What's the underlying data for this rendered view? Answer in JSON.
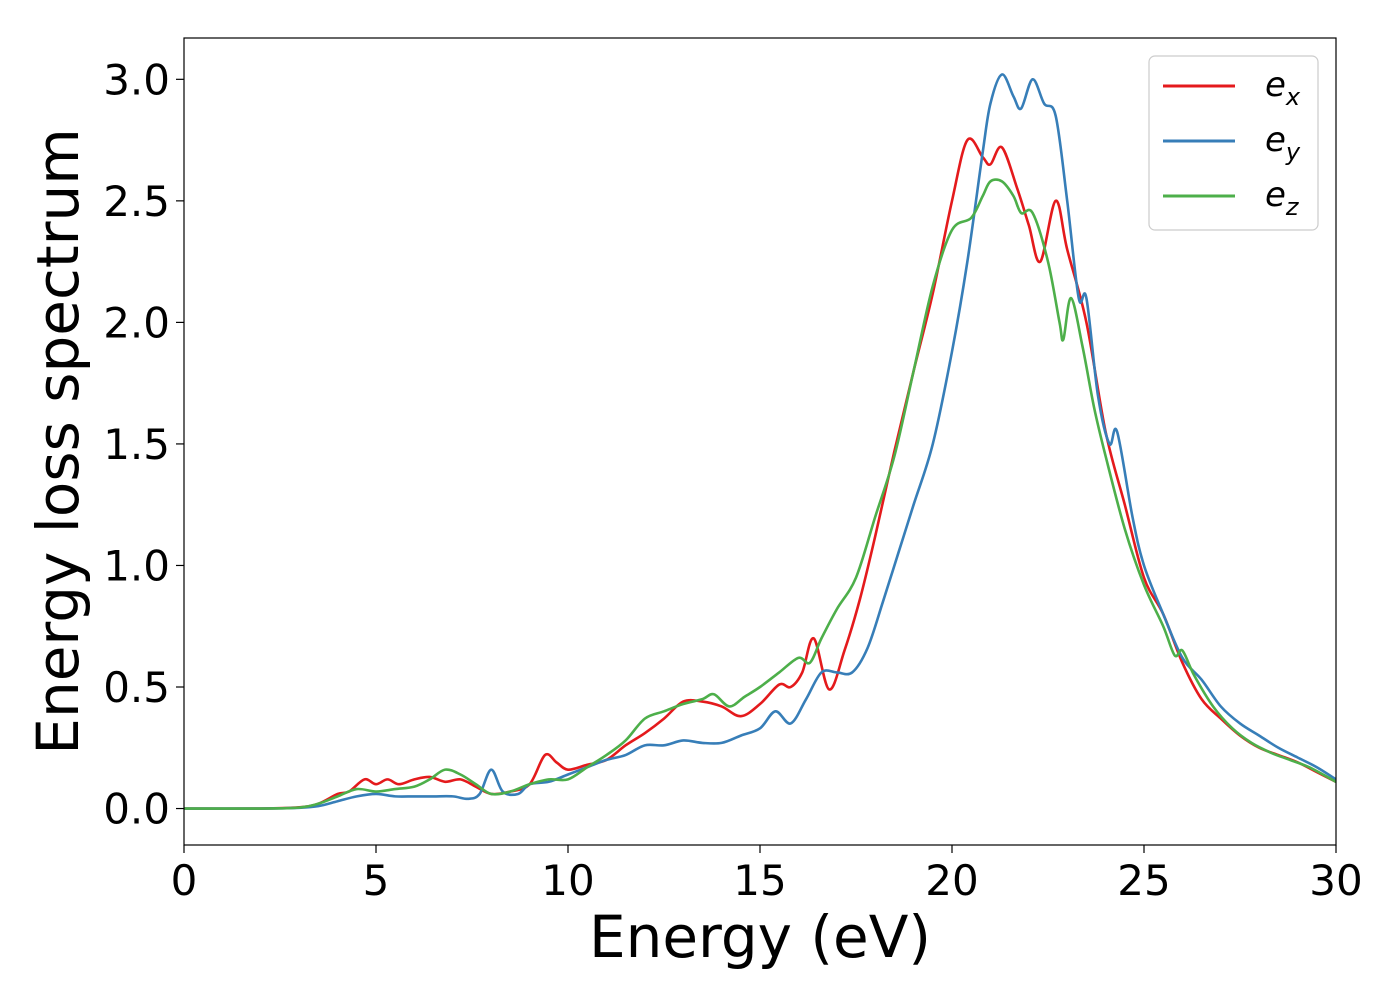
{
  "chart_data": {
    "type": "line",
    "title": "",
    "xlabel": "Energy (eV)",
    "ylabel": "Energy loss spectrum",
    "xlim": [
      0,
      30
    ],
    "ylim": [
      -0.15,
      3.17
    ],
    "x_ticks": [
      "0",
      "5",
      "10",
      "15",
      "20",
      "25",
      "30"
    ],
    "y_ticks": [
      "0.0",
      "0.5",
      "1.0",
      "1.5",
      "2.0",
      "2.5",
      "3.0"
    ],
    "grid": false,
    "legend_position": "top-right",
    "series": [
      {
        "name": "e_x",
        "legend_base": "e",
        "legend_sub": "x",
        "color": "#e41a1c",
        "points": [
          [
            0,
            0.0
          ],
          [
            2,
            0.0
          ],
          [
            3,
            0.005
          ],
          [
            3.5,
            0.02
          ],
          [
            4,
            0.06
          ],
          [
            4.3,
            0.07
          ],
          [
            4.7,
            0.12
          ],
          [
            5.0,
            0.1
          ],
          [
            5.3,
            0.12
          ],
          [
            5.6,
            0.1
          ],
          [
            6.0,
            0.12
          ],
          [
            6.4,
            0.13
          ],
          [
            6.8,
            0.11
          ],
          [
            7.2,
            0.12
          ],
          [
            7.6,
            0.09
          ],
          [
            8.0,
            0.06
          ],
          [
            8.5,
            0.07
          ],
          [
            9.0,
            0.1
          ],
          [
            9.4,
            0.22
          ],
          [
            9.7,
            0.19
          ],
          [
            10.0,
            0.16
          ],
          [
            10.5,
            0.18
          ],
          [
            11.0,
            0.2
          ],
          [
            11.5,
            0.26
          ],
          [
            12.0,
            0.31
          ],
          [
            12.5,
            0.37
          ],
          [
            13.0,
            0.44
          ],
          [
            13.5,
            0.44
          ],
          [
            14.0,
            0.42
          ],
          [
            14.5,
            0.38
          ],
          [
            15.0,
            0.43
          ],
          [
            15.5,
            0.51
          ],
          [
            15.8,
            0.5
          ],
          [
            16.1,
            0.56
          ],
          [
            16.4,
            0.7
          ],
          [
            16.8,
            0.49
          ],
          [
            17.2,
            0.65
          ],
          [
            17.6,
            0.86
          ],
          [
            18.0,
            1.12
          ],
          [
            18.5,
            1.47
          ],
          [
            19.0,
            1.8
          ],
          [
            19.5,
            2.12
          ],
          [
            20.0,
            2.5
          ],
          [
            20.4,
            2.75
          ],
          [
            20.8,
            2.68
          ],
          [
            21.0,
            2.65
          ],
          [
            21.3,
            2.72
          ],
          [
            21.7,
            2.55
          ],
          [
            22.0,
            2.4
          ],
          [
            22.3,
            2.25
          ],
          [
            22.7,
            2.5
          ],
          [
            23.0,
            2.3
          ],
          [
            23.5,
            2.0
          ],
          [
            24.0,
            1.55
          ],
          [
            24.5,
            1.25
          ],
          [
            25.0,
            0.95
          ],
          [
            25.5,
            0.8
          ],
          [
            26.0,
            0.6
          ],
          [
            26.5,
            0.45
          ],
          [
            27.0,
            0.37
          ],
          [
            27.5,
            0.3
          ],
          [
            28.0,
            0.25
          ],
          [
            28.5,
            0.22
          ],
          [
            29.0,
            0.19
          ],
          [
            29.5,
            0.15
          ],
          [
            30.0,
            0.11
          ]
        ]
      },
      {
        "name": "e_y",
        "legend_base": "e",
        "legend_sub": "y",
        "color": "#377eb8",
        "points": [
          [
            0,
            0.0
          ],
          [
            2,
            0.0
          ],
          [
            3,
            0.003
          ],
          [
            3.5,
            0.01
          ],
          [
            4,
            0.03
          ],
          [
            4.5,
            0.05
          ],
          [
            5.0,
            0.06
          ],
          [
            5.5,
            0.05
          ],
          [
            6.0,
            0.05
          ],
          [
            6.5,
            0.05
          ],
          [
            7.0,
            0.05
          ],
          [
            7.4,
            0.04
          ],
          [
            7.7,
            0.06
          ],
          [
            8.0,
            0.16
          ],
          [
            8.3,
            0.07
          ],
          [
            8.7,
            0.06
          ],
          [
            9.0,
            0.1
          ],
          [
            9.5,
            0.11
          ],
          [
            10.0,
            0.14
          ],
          [
            10.5,
            0.17
          ],
          [
            11.0,
            0.2
          ],
          [
            11.5,
            0.22
          ],
          [
            12.0,
            0.26
          ],
          [
            12.5,
            0.26
          ],
          [
            13.0,
            0.28
          ],
          [
            13.5,
            0.27
          ],
          [
            14.0,
            0.27
          ],
          [
            14.5,
            0.3
          ],
          [
            15.0,
            0.33
          ],
          [
            15.4,
            0.4
          ],
          [
            15.8,
            0.35
          ],
          [
            16.2,
            0.45
          ],
          [
            16.6,
            0.56
          ],
          [
            17.0,
            0.56
          ],
          [
            17.4,
            0.56
          ],
          [
            17.8,
            0.66
          ],
          [
            18.2,
            0.85
          ],
          [
            18.6,
            1.05
          ],
          [
            19.0,
            1.25
          ],
          [
            19.5,
            1.5
          ],
          [
            20.0,
            1.88
          ],
          [
            20.4,
            2.25
          ],
          [
            20.8,
            2.7
          ],
          [
            21.0,
            2.9
          ],
          [
            21.3,
            3.02
          ],
          [
            21.6,
            2.93
          ],
          [
            21.8,
            2.88
          ],
          [
            22.1,
            3.0
          ],
          [
            22.4,
            2.9
          ],
          [
            22.7,
            2.85
          ],
          [
            23.0,
            2.5
          ],
          [
            23.3,
            2.1
          ],
          [
            23.5,
            2.1
          ],
          [
            23.8,
            1.7
          ],
          [
            24.1,
            1.5
          ],
          [
            24.3,
            1.55
          ],
          [
            24.7,
            1.2
          ],
          [
            25.0,
            1.0
          ],
          [
            25.5,
            0.8
          ],
          [
            26.0,
            0.62
          ],
          [
            26.5,
            0.53
          ],
          [
            27.0,
            0.42
          ],
          [
            27.5,
            0.35
          ],
          [
            28.0,
            0.3
          ],
          [
            28.5,
            0.25
          ],
          [
            29.0,
            0.21
          ],
          [
            29.5,
            0.17
          ],
          [
            30.0,
            0.12
          ]
        ]
      },
      {
        "name": "e_z",
        "legend_base": "e",
        "legend_sub": "z",
        "color": "#4daf4a",
        "points": [
          [
            0,
            0.0
          ],
          [
            2,
            0.0
          ],
          [
            3,
            0.004
          ],
          [
            3.5,
            0.02
          ],
          [
            4,
            0.05
          ],
          [
            4.5,
            0.08
          ],
          [
            5.0,
            0.07
          ],
          [
            5.5,
            0.08
          ],
          [
            6.0,
            0.09
          ],
          [
            6.4,
            0.12
          ],
          [
            6.8,
            0.16
          ],
          [
            7.2,
            0.14
          ],
          [
            7.6,
            0.1
          ],
          [
            8.0,
            0.06
          ],
          [
            8.5,
            0.07
          ],
          [
            9.0,
            0.1
          ],
          [
            9.5,
            0.12
          ],
          [
            10.0,
            0.12
          ],
          [
            10.5,
            0.17
          ],
          [
            11.0,
            0.22
          ],
          [
            11.5,
            0.28
          ],
          [
            12.0,
            0.37
          ],
          [
            12.5,
            0.4
          ],
          [
            13.0,
            0.43
          ],
          [
            13.5,
            0.45
          ],
          [
            13.8,
            0.47
          ],
          [
            14.2,
            0.42
          ],
          [
            14.6,
            0.46
          ],
          [
            15.0,
            0.5
          ],
          [
            15.5,
            0.56
          ],
          [
            16.0,
            0.62
          ],
          [
            16.3,
            0.6
          ],
          [
            16.6,
            0.7
          ],
          [
            17.0,
            0.82
          ],
          [
            17.5,
            0.95
          ],
          [
            18.0,
            1.2
          ],
          [
            18.5,
            1.45
          ],
          [
            19.0,
            1.8
          ],
          [
            19.5,
            2.15
          ],
          [
            20.0,
            2.38
          ],
          [
            20.5,
            2.43
          ],
          [
            20.8,
            2.52
          ],
          [
            21.0,
            2.58
          ],
          [
            21.3,
            2.58
          ],
          [
            21.6,
            2.52
          ],
          [
            21.8,
            2.45
          ],
          [
            22.1,
            2.45
          ],
          [
            22.5,
            2.25
          ],
          [
            22.8,
            2.0
          ],
          [
            22.9,
            1.93
          ],
          [
            23.1,
            2.1
          ],
          [
            23.4,
            1.9
          ],
          [
            23.7,
            1.65
          ],
          [
            24.0,
            1.45
          ],
          [
            24.5,
            1.15
          ],
          [
            25.0,
            0.92
          ],
          [
            25.5,
            0.75
          ],
          [
            25.8,
            0.63
          ],
          [
            26.0,
            0.65
          ],
          [
            26.3,
            0.55
          ],
          [
            26.8,
            0.42
          ],
          [
            27.3,
            0.33
          ],
          [
            27.8,
            0.27
          ],
          [
            28.3,
            0.23
          ],
          [
            28.8,
            0.2
          ],
          [
            29.3,
            0.17
          ],
          [
            30.0,
            0.11
          ]
        ]
      }
    ]
  }
}
